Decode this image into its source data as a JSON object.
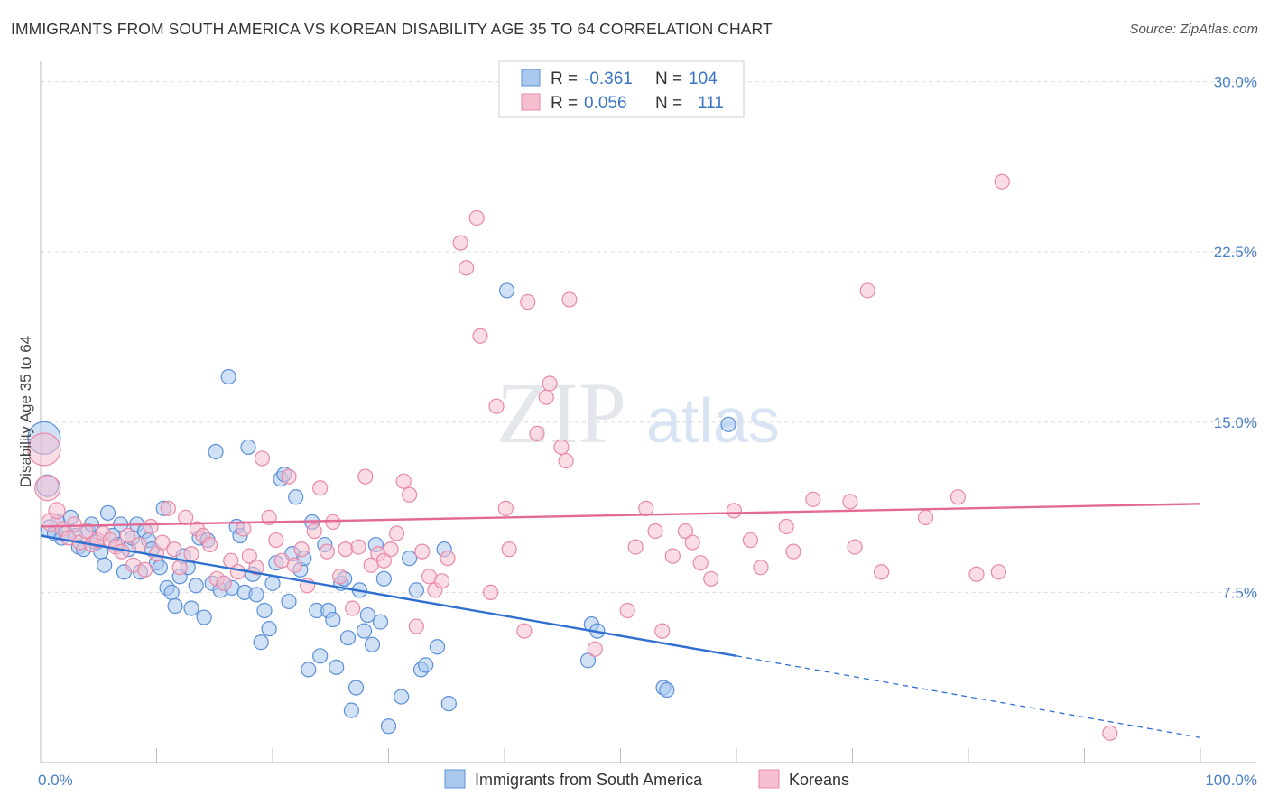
{
  "title": "IMMIGRANTS FROM SOUTH AMERICA VS KOREAN DISABILITY AGE 35 TO 64 CORRELATION CHART",
  "source": "Source: ZipAtlas.com",
  "watermark": {
    "zip": "ZIP",
    "atlas": "atlas"
  },
  "colors": {
    "blue_fill": "#a9c8ee",
    "blue_stroke": "#5b8fd6",
    "blue_line": "#2f6fcf",
    "pink_fill": "#f6bfd0",
    "pink_stroke": "#e889a8",
    "pink_line": "#e36a94",
    "grid": "#dcdcdc",
    "tick_text": "#4a7fc9"
  },
  "legend": {
    "rows": [
      {
        "r_label": "R =",
        "r_value": "-0.361",
        "n_label": "N =",
        "n_value": "104"
      },
      {
        "r_label": "R =",
        "r_value": "0.056",
        "n_label": "N =",
        "n_value": "111"
      }
    ]
  },
  "chart_data": {
    "type": "scatter",
    "xlabel": "",
    "ylabel": "Disability Age 35 to 64",
    "xlim": [
      0,
      100
    ],
    "ylim": [
      0,
      30.5
    ],
    "x_tick_labels": [
      "0.0%",
      "100.0%"
    ],
    "y_ticks": [
      7.5,
      15.0,
      22.5,
      30.0
    ],
    "y_tick_labels": [
      "7.5%",
      "15.0%",
      "22.5%",
      "30.0%"
    ],
    "grid": true,
    "legend_position": "top-center",
    "series": [
      {
        "name": "Immigrants from South America",
        "color": "blue",
        "trend": {
          "x0": 0,
          "y0": 10.0,
          "x1": 60,
          "y1": 4.7,
          "dashed_to_x": 100,
          "dashed_to_y": 1.1
        },
        "points": [
          [
            0.3,
            14.3,
            18
          ],
          [
            0.6,
            12.2,
            12
          ],
          [
            0.8,
            10.3,
            10
          ],
          [
            1.2,
            10.1,
            8
          ],
          [
            1.5,
            10.6,
            8
          ],
          [
            1.8,
            9.9,
            8
          ],
          [
            2.2,
            10.1,
            8
          ],
          [
            2.6,
            10.8,
            8
          ],
          [
            3.0,
            10.0,
            8
          ],
          [
            3.3,
            9.5,
            8
          ],
          [
            3.7,
            9.4,
            8
          ],
          [
            4.1,
            10.2,
            8
          ],
          [
            4.4,
            10.5,
            8
          ],
          [
            4.8,
            9.7,
            8
          ],
          [
            5.2,
            9.3,
            8
          ],
          [
            5.5,
            8.7,
            8
          ],
          [
            5.8,
            11.0,
            8
          ],
          [
            6.2,
            10.0,
            8
          ],
          [
            6.6,
            9.6,
            8
          ],
          [
            6.9,
            10.5,
            8
          ],
          [
            7.2,
            8.4,
            8
          ],
          [
            7.6,
            9.4,
            8
          ],
          [
            7.9,
            9.9,
            8
          ],
          [
            8.3,
            10.5,
            8
          ],
          [
            8.6,
            8.4,
            8
          ],
          [
            9.0,
            10.2,
            8
          ],
          [
            9.3,
            9.8,
            8
          ],
          [
            9.6,
            9.4,
            8
          ],
          [
            10.0,
            8.8,
            8
          ],
          [
            10.3,
            8.6,
            8
          ],
          [
            10.6,
            11.2,
            8
          ],
          [
            10.9,
            7.7,
            8
          ],
          [
            11.3,
            7.5,
            8
          ],
          [
            11.6,
            6.9,
            8
          ],
          [
            12.0,
            8.2,
            8
          ],
          [
            12.3,
            9.1,
            8
          ],
          [
            12.7,
            8.6,
            8
          ],
          [
            13.0,
            6.8,
            8
          ],
          [
            13.4,
            7.8,
            8
          ],
          [
            13.7,
            9.9,
            8
          ],
          [
            14.1,
            6.4,
            8
          ],
          [
            14.4,
            9.8,
            8
          ],
          [
            14.8,
            7.9,
            8
          ],
          [
            15.1,
            13.7,
            8
          ],
          [
            15.5,
            7.6,
            8
          ],
          [
            15.8,
            7.9,
            8
          ],
          [
            16.2,
            17.0,
            8
          ],
          [
            16.5,
            7.7,
            8
          ],
          [
            16.9,
            10.4,
            8
          ],
          [
            17.2,
            10.0,
            8
          ],
          [
            17.6,
            7.5,
            8
          ],
          [
            17.9,
            13.9,
            8
          ],
          [
            18.3,
            8.3,
            8
          ],
          [
            18.6,
            7.4,
            8
          ],
          [
            19.0,
            5.3,
            8
          ],
          [
            19.3,
            6.7,
            8
          ],
          [
            19.7,
            5.9,
            8
          ],
          [
            20.0,
            7.9,
            8
          ],
          [
            20.3,
            8.8,
            8
          ],
          [
            20.7,
            12.5,
            8
          ],
          [
            21.0,
            12.7,
            8
          ],
          [
            21.4,
            7.1,
            8
          ],
          [
            21.7,
            9.2,
            8
          ],
          [
            22.0,
            11.7,
            8
          ],
          [
            22.4,
            8.5,
            8
          ],
          [
            22.7,
            9.0,
            8
          ],
          [
            23.1,
            4.1,
            8
          ],
          [
            23.4,
            10.6,
            8
          ],
          [
            23.8,
            6.7,
            8
          ],
          [
            24.1,
            4.7,
            8
          ],
          [
            24.5,
            9.6,
            8
          ],
          [
            24.8,
            6.7,
            8
          ],
          [
            25.2,
            6.3,
            8
          ],
          [
            25.5,
            4.2,
            8
          ],
          [
            25.9,
            7.9,
            8
          ],
          [
            26.2,
            8.1,
            8
          ],
          [
            26.5,
            5.5,
            8
          ],
          [
            26.8,
            2.3,
            8
          ],
          [
            27.2,
            3.3,
            8
          ],
          [
            27.5,
            7.6,
            8
          ],
          [
            27.9,
            5.8,
            8
          ],
          [
            28.2,
            6.5,
            8
          ],
          [
            28.6,
            5.2,
            8
          ],
          [
            28.9,
            9.6,
            8
          ],
          [
            29.3,
            6.2,
            8
          ],
          [
            29.6,
            8.1,
            8
          ],
          [
            30.0,
            1.6,
            8
          ],
          [
            31.1,
            2.9,
            8
          ],
          [
            31.8,
            9.0,
            8
          ],
          [
            32.4,
            7.6,
            8
          ],
          [
            32.8,
            4.1,
            8
          ],
          [
            33.2,
            4.3,
            8
          ],
          [
            34.2,
            5.1,
            8
          ],
          [
            34.8,
            9.4,
            8
          ],
          [
            35.2,
            2.6,
            8
          ],
          [
            40.2,
            20.8,
            8
          ],
          [
            47.2,
            4.5,
            8
          ],
          [
            47.5,
            6.1,
            8
          ],
          [
            48.0,
            5.8,
            8
          ],
          [
            53.7,
            3.3,
            8
          ],
          [
            54.0,
            3.2,
            8
          ],
          [
            59.3,
            14.9,
            8
          ]
        ]
      },
      {
        "name": "Koreans",
        "color": "pink",
        "trend": {
          "x0": 0,
          "y0": 10.4,
          "x1": 100,
          "y1": 11.4
        },
        "points": [
          [
            0.3,
            13.8,
            18
          ],
          [
            0.6,
            12.1,
            14
          ],
          [
            0.9,
            10.6,
            10
          ],
          [
            1.4,
            11.1,
            9
          ],
          [
            1.9,
            10.3,
            8
          ],
          [
            2.4,
            9.9,
            8
          ],
          [
            2.9,
            10.5,
            8
          ],
          [
            3.4,
            9.7,
            8
          ],
          [
            3.9,
            10.2,
            8
          ],
          [
            4.4,
            9.6,
            8
          ],
          [
            4.9,
            9.8,
            8
          ],
          [
            5.4,
            10.1,
            8
          ],
          [
            6.0,
            9.8,
            8
          ],
          [
            6.5,
            9.5,
            8
          ],
          [
            7.0,
            9.3,
            8
          ],
          [
            7.5,
            10.0,
            8
          ],
          [
            8.0,
            8.7,
            8
          ],
          [
            8.5,
            9.6,
            8
          ],
          [
            9.0,
            8.5,
            8
          ],
          [
            9.5,
            10.4,
            8
          ],
          [
            10.0,
            9.2,
            8
          ],
          [
            10.5,
            9.7,
            8
          ],
          [
            11.0,
            11.2,
            8
          ],
          [
            11.5,
            9.4,
            8
          ],
          [
            12.0,
            8.6,
            8
          ],
          [
            12.5,
            10.8,
            8
          ],
          [
            13.0,
            9.2,
            8
          ],
          [
            13.5,
            10.3,
            8
          ],
          [
            14.0,
            10.0,
            8
          ],
          [
            14.6,
            9.6,
            8
          ],
          [
            15.2,
            8.1,
            8
          ],
          [
            15.8,
            7.9,
            8
          ],
          [
            16.4,
            8.9,
            8
          ],
          [
            17.0,
            8.4,
            8
          ],
          [
            17.5,
            10.3,
            8
          ],
          [
            18.0,
            9.1,
            8
          ],
          [
            18.6,
            8.6,
            8
          ],
          [
            19.1,
            13.4,
            8
          ],
          [
            19.7,
            10.8,
            8
          ],
          [
            20.3,
            9.8,
            8
          ],
          [
            20.8,
            8.9,
            8
          ],
          [
            21.4,
            12.6,
            8
          ],
          [
            21.9,
            8.7,
            8
          ],
          [
            22.5,
            9.4,
            8
          ],
          [
            23.0,
            7.8,
            8
          ],
          [
            23.6,
            10.2,
            8
          ],
          [
            24.1,
            12.1,
            8
          ],
          [
            24.7,
            9.3,
            8
          ],
          [
            25.2,
            10.6,
            8
          ],
          [
            25.8,
            8.2,
            8
          ],
          [
            26.3,
            9.4,
            8
          ],
          [
            26.9,
            6.8,
            8
          ],
          [
            27.4,
            9.5,
            8
          ],
          [
            28.0,
            12.6,
            8
          ],
          [
            28.5,
            8.7,
            8
          ],
          [
            29.1,
            9.2,
            8
          ],
          [
            29.6,
            8.9,
            8
          ],
          [
            30.2,
            9.4,
            8
          ],
          [
            30.7,
            10.1,
            8
          ],
          [
            31.3,
            12.4,
            8
          ],
          [
            31.8,
            11.8,
            8
          ],
          [
            32.4,
            6.0,
            8
          ],
          [
            32.9,
            9.3,
            8
          ],
          [
            33.5,
            8.2,
            8
          ],
          [
            34.0,
            7.6,
            8
          ],
          [
            34.6,
            8.0,
            8
          ],
          [
            35.1,
            9.0,
            8
          ],
          [
            36.2,
            22.9,
            8
          ],
          [
            36.7,
            21.8,
            8
          ],
          [
            37.6,
            24.0,
            8
          ],
          [
            37.9,
            18.8,
            8
          ],
          [
            38.8,
            7.5,
            8
          ],
          [
            39.3,
            15.7,
            8
          ],
          [
            40.1,
            11.2,
            8
          ],
          [
            40.4,
            9.4,
            8
          ],
          [
            41.7,
            5.8,
            8
          ],
          [
            42.0,
            20.3,
            8
          ],
          [
            42.8,
            14.5,
            8
          ],
          [
            43.6,
            16.1,
            8
          ],
          [
            43.9,
            16.7,
            8
          ],
          [
            44.9,
            13.9,
            8
          ],
          [
            45.3,
            13.3,
            8
          ],
          [
            45.6,
            20.4,
            8
          ],
          [
            47.8,
            5.0,
            8
          ],
          [
            50.6,
            6.7,
            8
          ],
          [
            51.3,
            9.5,
            8
          ],
          [
            52.2,
            11.2,
            8
          ],
          [
            53.0,
            10.2,
            8
          ],
          [
            53.6,
            5.8,
            8
          ],
          [
            54.5,
            9.1,
            8
          ],
          [
            55.6,
            10.2,
            8
          ],
          [
            56.2,
            9.7,
            8
          ],
          [
            56.9,
            8.8,
            8
          ],
          [
            57.8,
            8.1,
            8
          ],
          [
            59.8,
            11.1,
            8
          ],
          [
            61.2,
            9.8,
            8
          ],
          [
            62.1,
            8.6,
            8
          ],
          [
            64.3,
            10.4,
            8
          ],
          [
            64.9,
            9.3,
            8
          ],
          [
            66.6,
            11.6,
            8
          ],
          [
            69.8,
            11.5,
            8
          ],
          [
            70.2,
            9.5,
            8
          ],
          [
            71.3,
            20.8,
            8
          ],
          [
            72.5,
            8.4,
            8
          ],
          [
            76.3,
            10.8,
            8
          ],
          [
            79.1,
            11.7,
            8
          ],
          [
            80.7,
            8.3,
            8
          ],
          [
            82.6,
            8.4,
            8
          ],
          [
            82.9,
            25.6,
            8
          ],
          [
            92.2,
            1.3,
            8
          ]
        ]
      }
    ]
  },
  "bottom_legend": [
    {
      "label": "Immigrants from South America",
      "color": "blue"
    },
    {
      "label": "Koreans",
      "color": "pink"
    }
  ]
}
